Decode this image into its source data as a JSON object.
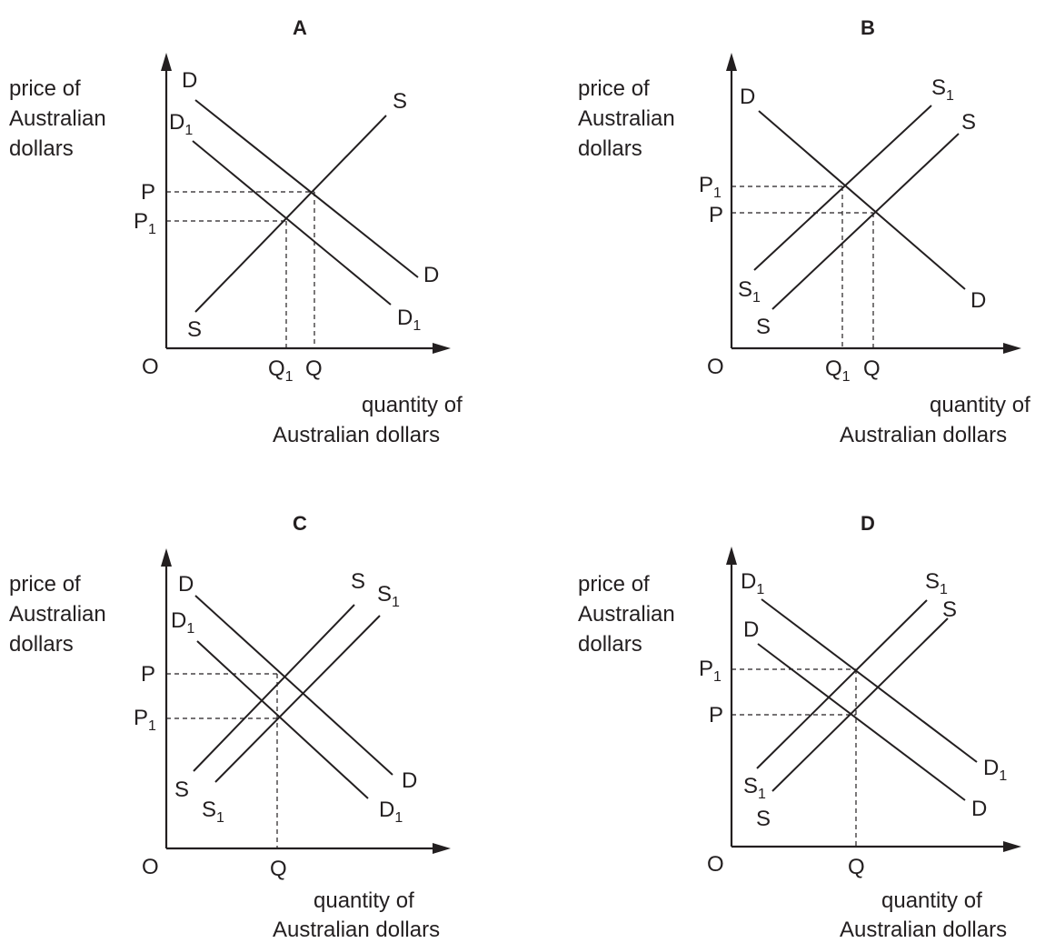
{
  "panels": [
    {
      "id": "A",
      "title": "A",
      "y_axis_label": [
        "price of",
        "Australian",
        "dollars"
      ],
      "x_axis_label": [
        "quantity of",
        "Australian dollars"
      ],
      "origin_label": "O",
      "curves": [
        {
          "kind": "demand",
          "start_label": {
            "main": "D",
            "sub": ""
          },
          "end_label": {
            "main": "D",
            "sub": ""
          }
        },
        {
          "kind": "demand",
          "start_label": {
            "main": "D",
            "sub": "1"
          },
          "end_label": {
            "main": "D",
            "sub": "1"
          }
        },
        {
          "kind": "supply",
          "start_label": {
            "main": "S",
            "sub": ""
          },
          "end_label": {
            "main": "S",
            "sub": ""
          }
        }
      ],
      "price_labels": [
        {
          "main": "P",
          "sub": ""
        },
        {
          "main": "P",
          "sub": "1"
        }
      ],
      "quantity_labels": [
        {
          "main": "Q",
          "sub": "1"
        },
        {
          "main": "Q",
          "sub": ""
        }
      ]
    },
    {
      "id": "B",
      "title": "B",
      "y_axis_label": [
        "price of",
        "Australian",
        "dollars"
      ],
      "x_axis_label": [
        "quantity of",
        "Australian dollars"
      ],
      "origin_label": "O",
      "curves": [
        {
          "kind": "demand",
          "start_label": {
            "main": "D",
            "sub": ""
          },
          "end_label": {
            "main": "D",
            "sub": ""
          }
        },
        {
          "kind": "supply",
          "start_label": {
            "main": "S",
            "sub": "1"
          },
          "end_label": {
            "main": "S",
            "sub": "1"
          }
        },
        {
          "kind": "supply",
          "start_label": {
            "main": "S",
            "sub": ""
          },
          "end_label": {
            "main": "S",
            "sub": ""
          }
        }
      ],
      "price_labels": [
        {
          "main": "P",
          "sub": "1"
        },
        {
          "main": "P",
          "sub": ""
        }
      ],
      "quantity_labels": [
        {
          "main": "Q",
          "sub": "1"
        },
        {
          "main": "Q",
          "sub": ""
        }
      ]
    },
    {
      "id": "C",
      "title": "C",
      "y_axis_label": [
        "price of",
        "Australian",
        "dollars"
      ],
      "x_axis_label": [
        "quantity of",
        "Australian dollars"
      ],
      "origin_label": "O",
      "curves": [
        {
          "kind": "demand",
          "start_label": {
            "main": "D",
            "sub": ""
          },
          "end_label": {
            "main": "D",
            "sub": ""
          }
        },
        {
          "kind": "demand",
          "start_label": {
            "main": "D",
            "sub": "1"
          },
          "end_label": {
            "main": "D",
            "sub": "1"
          }
        },
        {
          "kind": "supply",
          "start_label": {
            "main": "S",
            "sub": ""
          },
          "end_label": {
            "main": "S",
            "sub": ""
          }
        },
        {
          "kind": "supply",
          "start_label": {
            "main": "S",
            "sub": "1"
          },
          "end_label": {
            "main": "S",
            "sub": "1"
          }
        }
      ],
      "price_labels": [
        {
          "main": "P",
          "sub": ""
        },
        {
          "main": "P",
          "sub": "1"
        }
      ],
      "quantity_labels": [
        {
          "main": "Q",
          "sub": ""
        }
      ]
    },
    {
      "id": "D",
      "title": "D",
      "y_axis_label": [
        "price of",
        "Australian",
        "dollars"
      ],
      "x_axis_label": [
        "quantity of",
        "Australian dollars"
      ],
      "origin_label": "O",
      "curves": [
        {
          "kind": "demand",
          "start_label": {
            "main": "D",
            "sub": "1"
          },
          "end_label": {
            "main": "D",
            "sub": "1"
          }
        },
        {
          "kind": "demand",
          "start_label": {
            "main": "D",
            "sub": ""
          },
          "end_label": {
            "main": "D",
            "sub": ""
          }
        },
        {
          "kind": "supply",
          "start_label": {
            "main": "S",
            "sub": "1"
          },
          "end_label": {
            "main": "S",
            "sub": "1"
          }
        },
        {
          "kind": "supply",
          "start_label": {
            "main": "S",
            "sub": ""
          },
          "end_label": {
            "main": "S",
            "sub": ""
          }
        }
      ],
      "price_labels": [
        {
          "main": "P",
          "sub": "1"
        },
        {
          "main": "P",
          "sub": ""
        }
      ],
      "quantity_labels": [
        {
          "main": "Q",
          "sub": ""
        }
      ]
    }
  ]
}
